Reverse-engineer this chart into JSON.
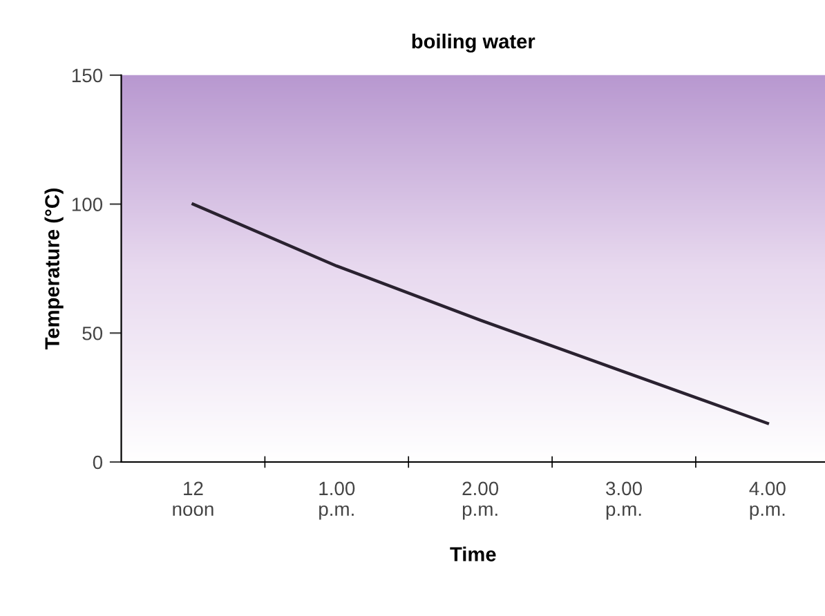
{
  "chart_data": {
    "type": "line",
    "title": "boiling water",
    "xlabel": "Time",
    "ylabel": "Temperature (°C)",
    "categories": [
      "12\nnoon",
      "1.00\np.m.",
      "2.00\np.m.",
      "3.00\np.m.",
      "4.00\np.m."
    ],
    "series": [
      {
        "color": "#2a2230",
        "values": [
          100,
          76,
          55,
          35,
          15
        ]
      }
    ],
    "ylim": [
      0,
      150
    ],
    "yticks": [
      0,
      50,
      100,
      150
    ],
    "grid": false,
    "legend": false,
    "marker": "none",
    "line_style": "solid"
  }
}
